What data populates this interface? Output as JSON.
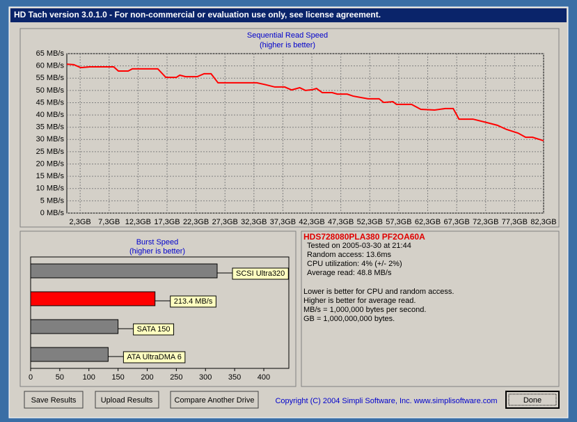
{
  "window": {
    "title": "HD Tach version 3.0.1.0  - For non-commercial or evaluation use only, see license agreement."
  },
  "chart_data": [
    {
      "type": "line",
      "title": "Sequential Read Speed",
      "subtitle": "(higher is better)",
      "x": [
        0,
        1.2,
        2.4,
        3.9,
        8.1,
        8.9,
        10.6,
        11.3,
        15.7,
        17.1,
        18.9,
        19.5,
        20.5,
        22.5,
        23.7,
        24.9,
        26.1,
        32.8,
        34.0,
        35.9,
        37.6,
        38.8,
        40.2,
        41.2,
        42.4,
        43.1,
        44.1,
        45.8,
        46.7,
        48.4,
        49.4,
        52.0,
        53.9,
        54.7,
        56.3,
        56.9,
        59.5,
        61.1,
        63.5,
        65.3,
        66.7,
        67.7,
        70.1,
        72.5,
        74.3,
        75.9,
        77.9,
        79.2,
        80.4,
        82.3
      ],
      "values": [
        60.7,
        60.5,
        59.3,
        59.6,
        59.6,
        57.9,
        57.9,
        58.8,
        58.8,
        55.3,
        55.3,
        56.2,
        55.6,
        55.6,
        56.8,
        56.8,
        53.1,
        53.1,
        52.5,
        51.4,
        51.4,
        50.2,
        51.1,
        50.0,
        50.3,
        50.8,
        49.1,
        49.1,
        48.5,
        48.5,
        47.7,
        46.6,
        46.6,
        45.1,
        45.4,
        44.3,
        44.3,
        42.3,
        42.0,
        42.6,
        42.6,
        38.3,
        38.3,
        36.9,
        35.8,
        34.1,
        32.6,
        30.9,
        30.9,
        29.5
      ],
      "color": "#ff0000",
      "xlim": [
        0,
        82.3
      ],
      "xticks": [
        {
          "value": 2.3,
          "label": "2,3GB"
        },
        {
          "value": 7.3,
          "label": "7,3GB"
        },
        {
          "value": 12.3,
          "label": "12,3GB"
        },
        {
          "value": 17.3,
          "label": "17,3GB"
        },
        {
          "value": 22.3,
          "label": "22,3GB"
        },
        {
          "value": 27.3,
          "label": "27,3GB"
        },
        {
          "value": 32.3,
          "label": "32,3GB"
        },
        {
          "value": 37.3,
          "label": "37,3GB"
        },
        {
          "value": 42.3,
          "label": "42,3GB"
        },
        {
          "value": 47.3,
          "label": "47,3GB"
        },
        {
          "value": 52.3,
          "label": "52,3GB"
        },
        {
          "value": 57.3,
          "label": "57,3GB"
        },
        {
          "value": 62.3,
          "label": "62,3GB"
        },
        {
          "value": 67.3,
          "label": "67,3GB"
        },
        {
          "value": 72.3,
          "label": "72,3GB"
        },
        {
          "value": 77.3,
          "label": "77,3GB"
        },
        {
          "value": 82.3,
          "label": "82,3GB"
        }
      ],
      "ylim": [
        0,
        65
      ],
      "yticks": [
        {
          "value": 0,
          "label": "0 MB/s"
        },
        {
          "value": 5,
          "label": "5 MB/s"
        },
        {
          "value": 10,
          "label": "10 MB/s"
        },
        {
          "value": 15,
          "label": "15 MB/s"
        },
        {
          "value": 20,
          "label": "20 MB/s"
        },
        {
          "value": 25,
          "label": "25 MB/s"
        },
        {
          "value": 30,
          "label": "30 MB/s"
        },
        {
          "value": 35,
          "label": "35 MB/s"
        },
        {
          "value": 40,
          "label": "40 MB/s"
        },
        {
          "value": 45,
          "label": "45 MB/s"
        },
        {
          "value": 50,
          "label": "50 MB/s"
        },
        {
          "value": 55,
          "label": "55 MB/s"
        },
        {
          "value": 60,
          "label": "60 MB/s"
        },
        {
          "value": 65,
          "label": "65 MB/s"
        }
      ],
      "grid": true
    },
    {
      "type": "barh",
      "title": "Burst Speed",
      "subtitle": "(higher is better)",
      "categories": [
        "SCSI Ultra320",
        null,
        "SATA 150",
        "ATA UltraDMA 6"
      ],
      "values": [
        320,
        213.4,
        150,
        133
      ],
      "value_labels": [
        null,
        "213.4 MB/s",
        null,
        null
      ],
      "colors": [
        "#808080",
        "#ff0000",
        "#808080",
        "#808080"
      ],
      "xlim": [
        0,
        443
      ],
      "xticks": [
        0,
        50,
        100,
        150,
        200,
        250,
        300,
        350,
        400
      ]
    }
  ],
  "info": {
    "drive": "HDS728080PLA380 PF2OA60A",
    "lines": [
      "Tested on 2005-03-30 at 21:44",
      "Random access: 13.6ms",
      "CPU utilization: 4% (+/- 2%)",
      "Average read: 48.8 MB/s"
    ],
    "notes": [
      "Lower is better for CPU and random access.",
      "Higher is better for average read.",
      "MB/s = 1,000,000 bytes per second.",
      "GB = 1,000,000,000 bytes."
    ]
  },
  "buttons": [
    "Save Results",
    "Upload Results",
    "Compare Another Drive",
    "Done"
  ],
  "copyright": "Copyright (C) 2004 Simpli Software, Inc. www.simplisoftware.com"
}
